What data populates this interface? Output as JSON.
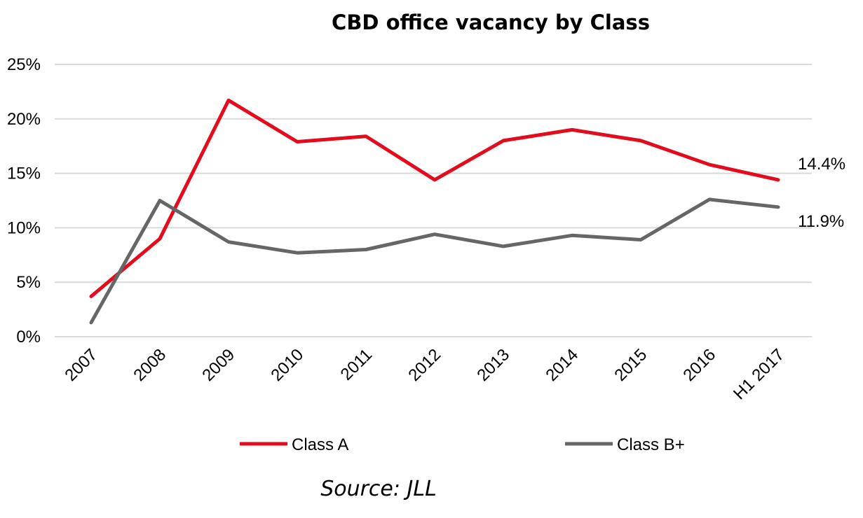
{
  "chart_data": {
    "type": "line",
    "title": "CBD office vacancy by Class",
    "xlabel": "",
    "ylabel": "",
    "categories": [
      "2007",
      "2008",
      "2009",
      "2010",
      "2011",
      "2012",
      "2013",
      "2014",
      "2015",
      "2016",
      "H1 2017"
    ],
    "ylim": [
      0,
      25
    ],
    "yticks": [
      0,
      5,
      10,
      15,
      20,
      25
    ],
    "ytick_labels": [
      "0%",
      "5%",
      "10%",
      "15%",
      "20%",
      "25%"
    ],
    "grid": true,
    "legend_position": "bottom",
    "series": [
      {
        "name": "Class A",
        "color": "#E30B1C",
        "values": [
          3.7,
          9.0,
          21.7,
          17.9,
          18.4,
          14.4,
          18.0,
          19.0,
          18.0,
          15.8,
          14.4
        ],
        "end_label": "14.4%"
      },
      {
        "name": "Class B+",
        "color": "#666666",
        "values": [
          1.3,
          12.5,
          8.7,
          7.7,
          8.0,
          9.4,
          8.3,
          9.3,
          8.9,
          12.6,
          11.9
        ],
        "end_label": "11.9%"
      }
    ],
    "source": "Source: JLL",
    "gridline_color": "#D9D9D9"
  }
}
